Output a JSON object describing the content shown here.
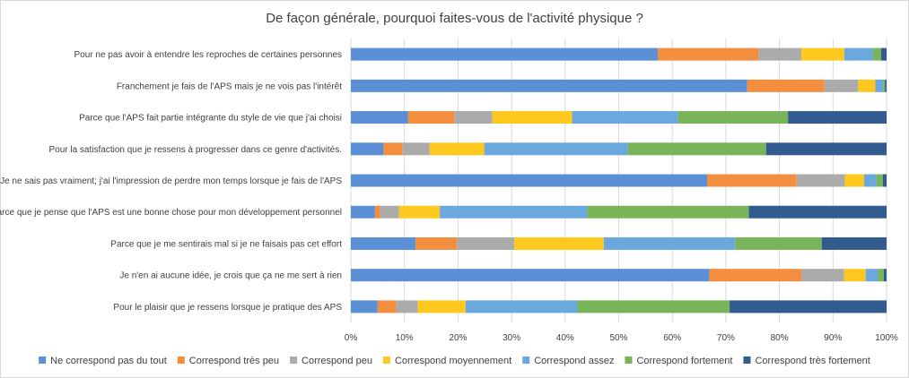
{
  "chart_data": {
    "type": "bar",
    "orientation": "horizontal",
    "stacked": "percent",
    "title": "De façon générale, pourquoi faites-vous de l'activité physique ?",
    "xlabel": "",
    "ylabel": "",
    "xlim": [
      0,
      100
    ],
    "x_ticks": [
      "0%",
      "10%",
      "20%",
      "30%",
      "40%",
      "50%",
      "60%",
      "70%",
      "80%",
      "90%",
      "100%"
    ],
    "legend_position": "bottom",
    "grid": true,
    "categories": [
      "Pour ne pas avoir à entendre les reproches de certaines personnes",
      "Franchement je fais de l'APS mais je ne vois pas l'intérêt",
      "Parce que l'APS fait partie intégrante du style de vie que j'ai choisi",
      "Pour la satisfaction que je ressens à progresser dans ce genre d'activités.",
      "Je ne sais pas vraiment; j'ai l'impression de perdre mon temps lorsque je fais de l'APS",
      "Parce que je pense que l'APS est une bonne chose pour mon développement personnel",
      "Parce que je me sentirais mal si je ne faisais pas cet effort",
      "Je n'en ai aucune idée, je crois que ça ne me sert à rien",
      "Pour le plaisir que je ressens lorsque je pratique des APS"
    ],
    "series": [
      {
        "name": "Ne correspond pas du tout",
        "color": "#5B8FD6",
        "values": [
          57.3,
          74,
          10.7,
          6.1,
          66.5,
          4.5,
          12.1,
          66.9,
          5.0
        ]
      },
      {
        "name": "Correspond très peu",
        "color": "#F28E3E",
        "values": [
          18.8,
          14.4,
          8.6,
          3.5,
          16.7,
          1.0,
          7.7,
          17.2,
          3.5
        ]
      },
      {
        "name": "Correspond peu",
        "color": "#ABABAB",
        "values": [
          8.0,
          6.3,
          7.1,
          5.1,
          9.0,
          3.5,
          10.7,
          8.0,
          4.0
        ]
      },
      {
        "name": "Correspond moyennement",
        "color": "#FFC81E",
        "values": [
          8.0,
          3.2,
          14.9,
          10.2,
          3.6,
          7.6,
          16.7,
          4.0,
          8.9
        ]
      },
      {
        "name": "Correspond assez",
        "color": "#6AA8DE",
        "values": [
          5.4,
          1.5,
          19.8,
          26.8,
          2.3,
          27.5,
          24.6,
          2.3,
          20.9
        ]
      },
      {
        "name": "Correspond fortement",
        "color": "#79B558",
        "values": [
          1.5,
          0.3,
          20.5,
          25.8,
          1.2,
          30.2,
          16.1,
          1.1,
          28.4
        ]
      },
      {
        "name": "Correspond très fortement",
        "color": "#325C8F",
        "values": [
          1.0,
          0.3,
          18.4,
          22.5,
          0.7,
          25.7,
          12.1,
          0.5,
          29.3
        ]
      }
    ]
  }
}
